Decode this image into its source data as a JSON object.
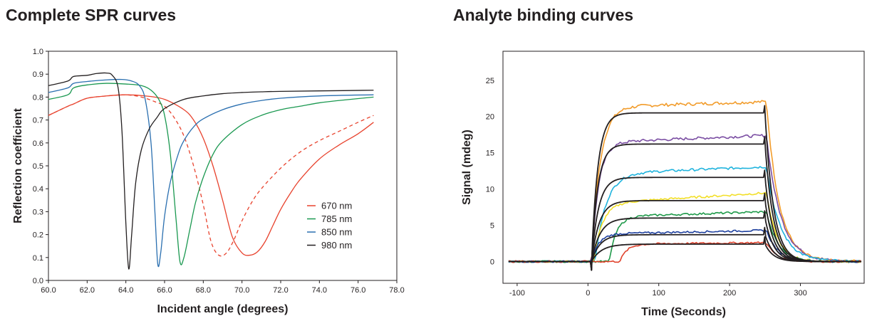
{
  "panels": {
    "left_title": "Complete SPR curves",
    "right_title": "Analyte binding curves"
  },
  "chart_data": [
    {
      "type": "line",
      "title": "Complete SPR curves",
      "xlabel": "Incident angle (degrees)",
      "ylabel": "Reflection coefficient",
      "xlim": [
        60.0,
        78.0
      ],
      "ylim": [
        0.0,
        1.0
      ],
      "xticks": [
        "60.0",
        "62.0",
        "64.0",
        "66.0",
        "68.0",
        "70.0",
        "72.0",
        "74.0",
        "76.0",
        "78.0"
      ],
      "yticks": [
        "0.0",
        "0.1",
        "0.2",
        "0.3",
        "0.4",
        "0.5",
        "0.6",
        "0.7",
        "0.8",
        "0.9",
        "1.0"
      ],
      "legend_position": "right",
      "grid": false,
      "series": [
        {
          "name": "670 nm",
          "color": "#e8432e",
          "style": "solid",
          "x": [
            60.0,
            61.0,
            61.3,
            62.0,
            63.0,
            64.0,
            65.0,
            66.0,
            67.0,
            67.5,
            68.0,
            68.5,
            69.0,
            69.5,
            70.0,
            70.4,
            70.8,
            71.2,
            71.6,
            72.0,
            72.5,
            73.0,
            74.0,
            75.0,
            76.0,
            76.8
          ],
          "y": [
            0.72,
            0.76,
            0.77,
            0.795,
            0.805,
            0.81,
            0.805,
            0.79,
            0.745,
            0.7,
            0.62,
            0.5,
            0.35,
            0.19,
            0.12,
            0.11,
            0.125,
            0.17,
            0.24,
            0.31,
            0.38,
            0.44,
            0.53,
            0.59,
            0.64,
            0.69
          ]
        },
        {
          "name": "670 nm",
          "color": "#e8432e",
          "style": "dashed",
          "x": [
            60.0,
            61.0,
            61.3,
            62.0,
            63.0,
            64.0,
            64.8,
            65.5,
            66.0,
            66.5,
            67.0,
            67.5,
            68.0,
            68.4,
            68.8,
            69.2,
            69.6,
            70.0,
            70.5,
            71.0,
            72.0,
            73.0,
            74.0,
            75.0,
            76.0,
            76.8
          ],
          "y": [
            0.72,
            0.76,
            0.77,
            0.795,
            0.805,
            0.81,
            0.8,
            0.78,
            0.76,
            0.71,
            0.63,
            0.5,
            0.33,
            0.17,
            0.11,
            0.12,
            0.18,
            0.26,
            0.34,
            0.4,
            0.49,
            0.56,
            0.61,
            0.65,
            0.69,
            0.72
          ]
        },
        {
          "name": "785 nm",
          "color": "#1a9850",
          "style": "solid",
          "x": [
            60.0,
            61.0,
            61.3,
            62.0,
            63.0,
            64.0,
            64.8,
            65.3,
            65.7,
            66.0,
            66.3,
            66.6,
            66.8,
            67.0,
            67.3,
            67.6,
            68.0,
            68.5,
            69.0,
            70.0,
            71.0,
            72.0,
            73.0,
            74.0,
            75.0,
            76.8
          ],
          "y": [
            0.79,
            0.81,
            0.84,
            0.853,
            0.86,
            0.857,
            0.85,
            0.83,
            0.79,
            0.72,
            0.55,
            0.26,
            0.08,
            0.1,
            0.22,
            0.34,
            0.45,
            0.55,
            0.61,
            0.68,
            0.72,
            0.745,
            0.76,
            0.775,
            0.785,
            0.8
          ]
        },
        {
          "name": "850 nm",
          "color": "#2a6fb0",
          "style": "solid",
          "x": [
            60.0,
            61.0,
            61.3,
            62.0,
            63.0,
            63.8,
            64.3,
            64.7,
            65.0,
            65.3,
            65.5,
            65.65,
            65.8,
            66.0,
            66.3,
            66.7,
            67.0,
            67.5,
            68.0,
            69.0,
            70.0,
            71.0,
            72.0,
            74.0,
            76.8
          ],
          "y": [
            0.82,
            0.84,
            0.86,
            0.868,
            0.875,
            0.877,
            0.87,
            0.85,
            0.79,
            0.6,
            0.3,
            0.07,
            0.12,
            0.28,
            0.43,
            0.55,
            0.61,
            0.67,
            0.705,
            0.745,
            0.77,
            0.785,
            0.795,
            0.805,
            0.81
          ]
        },
        {
          "name": "980 nm",
          "color": "#231f20",
          "style": "solid",
          "x": [
            60.0,
            61.0,
            61.3,
            62.0,
            62.5,
            63.0,
            63.3,
            63.6,
            63.8,
            64.0,
            64.15,
            64.3,
            64.5,
            64.8,
            65.2,
            65.6,
            66.0,
            67.0,
            68.0,
            69.0,
            70.0,
            71.0,
            72.0,
            74.0,
            76.8
          ],
          "y": [
            0.85,
            0.87,
            0.89,
            0.895,
            0.903,
            0.905,
            0.895,
            0.84,
            0.65,
            0.25,
            0.05,
            0.2,
            0.42,
            0.57,
            0.66,
            0.71,
            0.75,
            0.79,
            0.805,
            0.815,
            0.82,
            0.823,
            0.825,
            0.827,
            0.83
          ]
        }
      ]
    },
    {
      "type": "line",
      "title": "Analyte binding curves",
      "xlabel": "Time (Seconds)",
      "ylabel": "Signal (mdeg)",
      "xlim": [
        -120,
        390
      ],
      "ylim": [
        -3,
        29
      ],
      "xticks": [
        "-100",
        "0",
        "100",
        "200",
        "300"
      ],
      "yticks": [
        "0",
        "5",
        "10",
        "15",
        "20",
        "25"
      ],
      "grid": false,
      "series": [
        {
          "color": "#f29c2b",
          "style": "noisy",
          "plateau": 21.3,
          "start_t": 5,
          "end_t": 252,
          "tau_on": 12,
          "tau_off": 18,
          "rise": 0.15
        },
        {
          "color": "#7b4ea3",
          "style": "noisy",
          "plateau": 16.4,
          "start_t": 5,
          "end_t": 252,
          "tau_on": 10,
          "tau_off": 20,
          "rise": 0.2
        },
        {
          "color": "#1fb3dd",
          "style": "noisy",
          "plateau": 12.1,
          "start_t": 10,
          "end_t": 252,
          "tau_on": 15,
          "tau_off": 20,
          "rise": 0.2
        },
        {
          "color": "#f2df28",
          "style": "noisy",
          "plateau": 8.0,
          "start_t": 8,
          "end_t": 252,
          "tau_on": 12,
          "tau_off": 15,
          "rise": 0.3
        },
        {
          "color": "#1f9a4a",
          "style": "noisy",
          "plateau": 6.2,
          "start_t": 30,
          "end_t": 252,
          "tau_on": 10,
          "tau_off": 16,
          "rise": 0.15
        },
        {
          "color": "#1d3f9e",
          "style": "noisy",
          "plateau": 3.8,
          "start_t": 5,
          "end_t": 252,
          "tau_on": 10,
          "tau_off": 16,
          "rise": 0.1
        },
        {
          "color": "#e0412b",
          "style": "noisy",
          "plateau": 2.4,
          "start_t": 45,
          "end_t": 252,
          "tau_on": 10,
          "tau_off": 14,
          "rise": 0.05
        },
        {
          "color": "#231f20",
          "style": "fit",
          "plateau": 20.5,
          "start_t": 5,
          "end_t": 250,
          "tau_on": 9,
          "tau_off": 12,
          "rise": 0.0
        },
        {
          "color": "#231f20",
          "style": "fit",
          "plateau": 16.2,
          "start_t": 5,
          "end_t": 250,
          "tau_on": 9,
          "tau_off": 12,
          "rise": 0.0
        },
        {
          "color": "#231f20",
          "style": "fit",
          "plateau": 11.6,
          "start_t": 5,
          "end_t": 250,
          "tau_on": 10,
          "tau_off": 12,
          "rise": 0.0
        },
        {
          "color": "#231f20",
          "style": "fit",
          "plateau": 8.4,
          "start_t": 5,
          "end_t": 250,
          "tau_on": 11,
          "tau_off": 12,
          "rise": 0.0
        },
        {
          "color": "#231f20",
          "style": "fit",
          "plateau": 6.0,
          "start_t": 5,
          "end_t": 250,
          "tau_on": 12,
          "tau_off": 12,
          "rise": 0.0
        },
        {
          "color": "#231f20",
          "style": "fit",
          "plateau": 3.7,
          "start_t": 5,
          "end_t": 250,
          "tau_on": 12,
          "tau_off": 12,
          "rise": 0.0
        },
        {
          "color": "#231f20",
          "style": "fit",
          "plateau": 2.4,
          "start_t": 5,
          "end_t": 250,
          "tau_on": 14,
          "tau_off": 12,
          "rise": 0.0
        }
      ]
    }
  ]
}
